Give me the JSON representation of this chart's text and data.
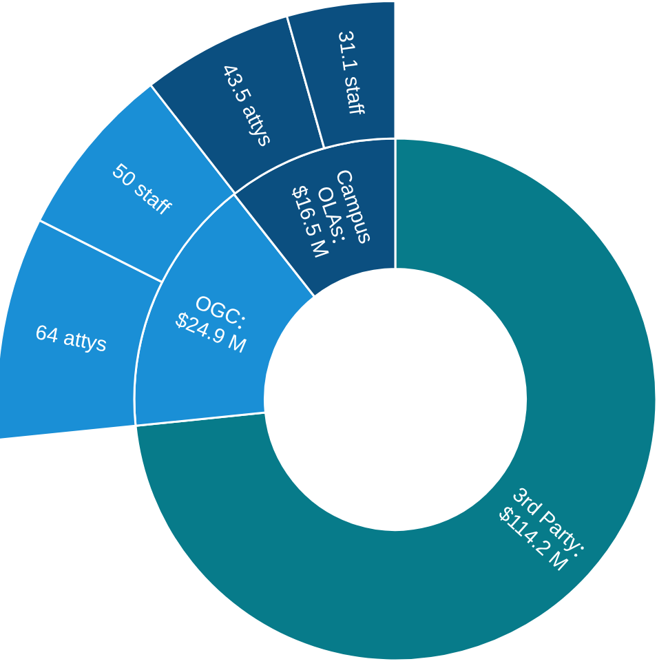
{
  "chart_data": [
    {
      "type": "donut",
      "categories": [
        "3rd Party",
        "OGC",
        "Campus OLAs"
      ],
      "values": [
        114.2,
        24.9,
        16.5
      ],
      "colors": [
        "#077b8a",
        "#1a8fd6",
        "#0b4f80"
      ],
      "value_labels": [
        "$114.2 M",
        "$24.9 M",
        "$16.5 M"
      ]
    },
    {
      "type": "donut",
      "categories": [
        "attys",
        "staff",
        "attys",
        "staff"
      ],
      "values": [
        64,
        50,
        43.5,
        31.1
      ],
      "colors": [
        "#1a8fd6",
        "#1a8fd6",
        "#0b4f80",
        "#0b4f80"
      ],
      "value_labels": [
        "64",
        "50",
        "43.5",
        "31.1"
      ]
    }
  ]
}
